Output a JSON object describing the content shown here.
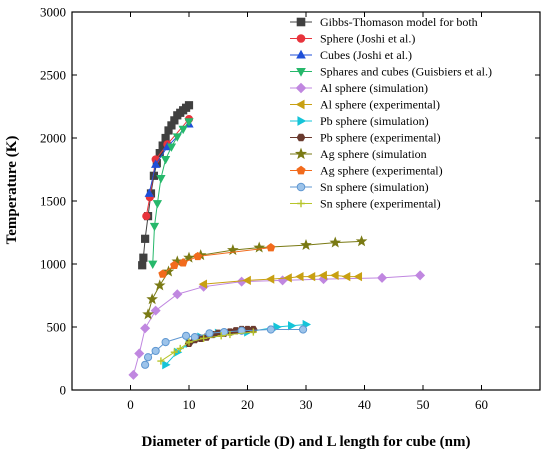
{
  "chart_data": {
    "type": "scatter",
    "xlabel": "Diameter of particle (D) and L length for cube (nm)",
    "ylabel": "Temperature (K)",
    "xlim": [
      -10,
      70
    ],
    "ylim": [
      0,
      3000
    ],
    "xticks": [
      0,
      10,
      20,
      30,
      40,
      50,
      60
    ],
    "yticks": [
      0,
      500,
      1000,
      1500,
      2000,
      2500,
      3000
    ],
    "legend_position": "top-right",
    "series": [
      {
        "name": "Gibbs-Thomason model for both",
        "color": "#404040",
        "marker": "square",
        "line": true,
        "points": [
          [
            2,
            990
          ],
          [
            2.2,
            1050
          ],
          [
            2.5,
            1200
          ],
          [
            3,
            1380
          ],
          [
            3.5,
            1560
          ],
          [
            4,
            1700
          ],
          [
            4.5,
            1800
          ],
          [
            5,
            1880
          ],
          [
            5.5,
            1940
          ],
          [
            6,
            2000
          ],
          [
            6.5,
            2060
          ],
          [
            7,
            2100
          ],
          [
            7.5,
            2140
          ],
          [
            8,
            2180
          ],
          [
            8.5,
            2200
          ],
          [
            9,
            2220
          ],
          [
            9.5,
            2240
          ],
          [
            10,
            2260
          ]
        ]
      },
      {
        "name": "Sphere (Joshi et al.)",
        "color": "#e8343c",
        "marker": "circle",
        "line": true,
        "points": [
          [
            2.7,
            1380
          ],
          [
            3.3,
            1530
          ],
          [
            4.3,
            1830
          ],
          [
            6.3,
            1950
          ],
          [
            10,
            2150
          ]
        ]
      },
      {
        "name": "Cubes (Joshi et al.)",
        "color": "#1f4fd8",
        "marker": "triangle-up",
        "line": true,
        "points": [
          [
            3.2,
            1560
          ],
          [
            4.3,
            1790
          ],
          [
            6.3,
            1930
          ],
          [
            10,
            2110
          ]
        ]
      },
      {
        "name": "Sphares and cubes (Guisbiers et al.)",
        "color": "#26b86b",
        "marker": "triangle-down",
        "line": true,
        "points": [
          [
            3.8,
            1000
          ],
          [
            4.1,
            1300
          ],
          [
            4.6,
            1480
          ],
          [
            5.2,
            1680
          ],
          [
            6,
            1830
          ],
          [
            7,
            1930
          ],
          [
            8,
            2010
          ],
          [
            9,
            2070
          ],
          [
            10,
            2130
          ]
        ]
      },
      {
        "name": "Al sphere (simulation)",
        "color": "#c087e0",
        "marker": "diamond",
        "line": true,
        "points": [
          [
            0.5,
            120
          ],
          [
            1.5,
            290
          ],
          [
            2.5,
            490
          ],
          [
            4.3,
            630
          ],
          [
            8,
            760
          ],
          [
            12.5,
            820
          ],
          [
            19,
            860
          ],
          [
            26,
            870
          ],
          [
            33,
            880
          ],
          [
            43,
            890
          ],
          [
            49.5,
            910
          ]
        ]
      },
      {
        "name": "Al sphere (experimental)",
        "color": "#c8a013",
        "marker": "triangle-left",
        "line": true,
        "points": [
          [
            12.5,
            840
          ],
          [
            20,
            870
          ],
          [
            24,
            880
          ],
          [
            27,
            890
          ],
          [
            29,
            900
          ],
          [
            31,
            900
          ],
          [
            33,
            910
          ],
          [
            35,
            910
          ],
          [
            37,
            900
          ],
          [
            39,
            900
          ]
        ]
      },
      {
        "name": "Pb sphere (simulation)",
        "color": "#15c4d8",
        "marker": "triangle-right",
        "line": true,
        "points": [
          [
            6,
            200
          ],
          [
            8,
            300
          ],
          [
            10,
            370
          ],
          [
            12,
            420
          ],
          [
            15,
            450
          ],
          [
            20,
            460
          ],
          [
            25,
            500
          ],
          [
            27.5,
            510
          ],
          [
            30,
            520
          ]
        ]
      },
      {
        "name": "Pb sphere (experimental)",
        "color": "#6a3a2f",
        "marker": "hexagon",
        "line": true,
        "points": [
          [
            10,
            370
          ],
          [
            11,
            400
          ],
          [
            12,
            410
          ],
          [
            13,
            420
          ],
          [
            14,
            440
          ],
          [
            15,
            450
          ],
          [
            16,
            450
          ],
          [
            17,
            460
          ],
          [
            18,
            470
          ],
          [
            19,
            480
          ],
          [
            20,
            480
          ],
          [
            21,
            480
          ]
        ]
      },
      {
        "name": "Ag sphere (simulation",
        "color": "#7a7a14",
        "marker": "star",
        "line": true,
        "points": [
          [
            3,
            600
          ],
          [
            3.7,
            720
          ],
          [
            5,
            830
          ],
          [
            6.5,
            940
          ],
          [
            8,
            1020
          ],
          [
            10,
            1050
          ],
          [
            12,
            1070
          ],
          [
            17.5,
            1110
          ],
          [
            22,
            1130
          ],
          [
            30,
            1150
          ],
          [
            35,
            1170
          ],
          [
            39.5,
            1180
          ]
        ]
      },
      {
        "name": "Ag sphere (experimental)",
        "color": "#f26b1d",
        "marker": "pentagon",
        "line": true,
        "points": [
          [
            5.5,
            920
          ],
          [
            7.5,
            990
          ],
          [
            9,
            1010
          ],
          [
            11.5,
            1060
          ],
          [
            24,
            1130
          ]
        ]
      },
      {
        "name": "Sn sphere (simulation)",
        "color": "#5f97d1",
        "marker": "sphere",
        "line": true,
        "points": [
          [
            2.5,
            200
          ],
          [
            3,
            260
          ],
          [
            4.3,
            310
          ],
          [
            6,
            380
          ],
          [
            9.5,
            430
          ],
          [
            11,
            420
          ],
          [
            13.5,
            450
          ],
          [
            16,
            460
          ],
          [
            19,
            470
          ],
          [
            24,
            480
          ],
          [
            29.5,
            480
          ]
        ]
      },
      {
        "name": "Sn sphere (experimental)",
        "color": "#b7c52a",
        "marker": "plus",
        "line": true,
        "points": [
          [
            5.2,
            230
          ],
          [
            7.5,
            300
          ],
          [
            8.5,
            330
          ],
          [
            10,
            380
          ],
          [
            12.5,
            410
          ],
          [
            15.5,
            430
          ],
          [
            17,
            440
          ],
          [
            21,
            460
          ]
        ]
      }
    ]
  }
}
